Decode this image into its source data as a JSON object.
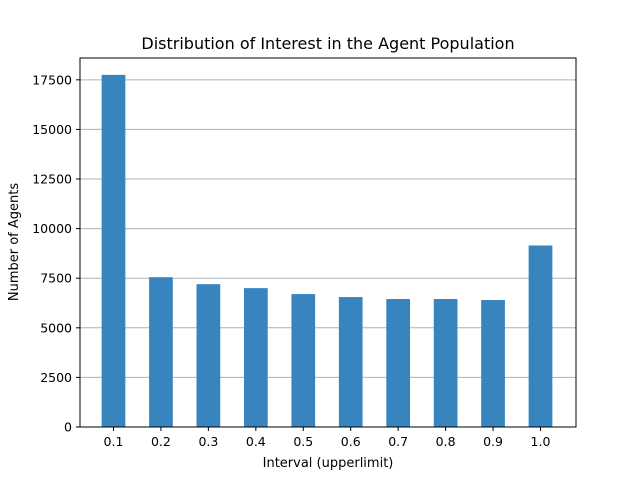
{
  "chart_data": {
    "type": "bar",
    "title": "Distribution of Interest in the Agent Population",
    "xlabel": "Interval (upperlimit)",
    "ylabel": "Number of Agents",
    "categories": [
      "0.1",
      "0.2",
      "0.3",
      "0.4",
      "0.5",
      "0.6",
      "0.7",
      "0.8",
      "0.9",
      "1.0"
    ],
    "values": [
      17750,
      7550,
      7200,
      7000,
      6700,
      6550,
      6450,
      6450,
      6400,
      9150
    ],
    "ylim": [
      0,
      18600
    ],
    "yticks": [
      0,
      2500,
      5000,
      7500,
      10000,
      12500,
      15000,
      17500
    ],
    "grid": "y-axis horizontal gridlines on",
    "bar_color": "#3784bf"
  }
}
